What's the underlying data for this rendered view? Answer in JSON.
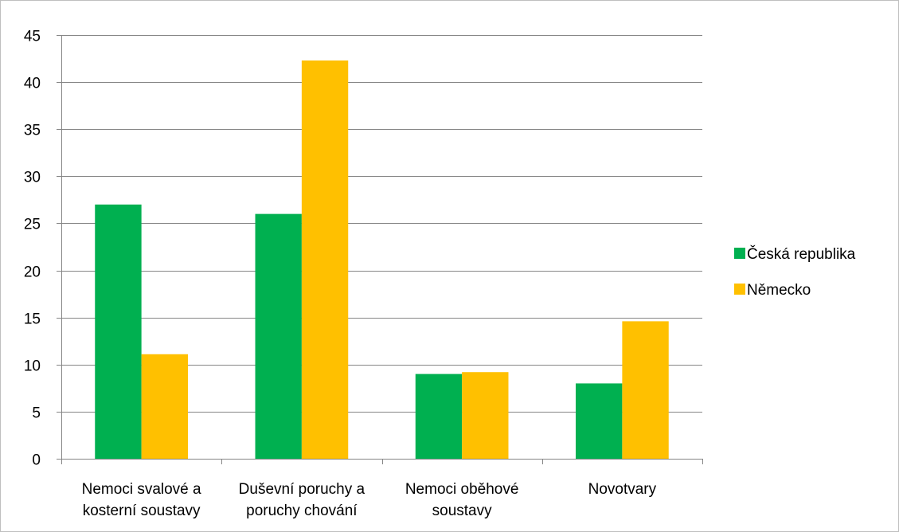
{
  "chart_data": {
    "type": "bar",
    "title": "",
    "xlabel": "",
    "ylabel": "",
    "categories": [
      [
        "Nemoci svalové a",
        "kosterní soustavy"
      ],
      [
        "Duševní poruchy a",
        "poruchy chování"
      ],
      [
        "Nemoci oběhové",
        "soustavy"
      ],
      [
        "Novotvary"
      ]
    ],
    "series": [
      {
        "name": "Česká republika",
        "color": "#00b050",
        "values": [
          27,
          26,
          9,
          8
        ]
      },
      {
        "name": "Německo",
        "color": "#ffc000",
        "values": [
          11.1,
          42.3,
          9.2,
          14.6
        ]
      }
    ],
    "ylim": [
      0,
      45
    ],
    "yticks": [
      0,
      5,
      10,
      15,
      20,
      25,
      30,
      35,
      40,
      45
    ],
    "grid": true,
    "legend_position": "right"
  }
}
